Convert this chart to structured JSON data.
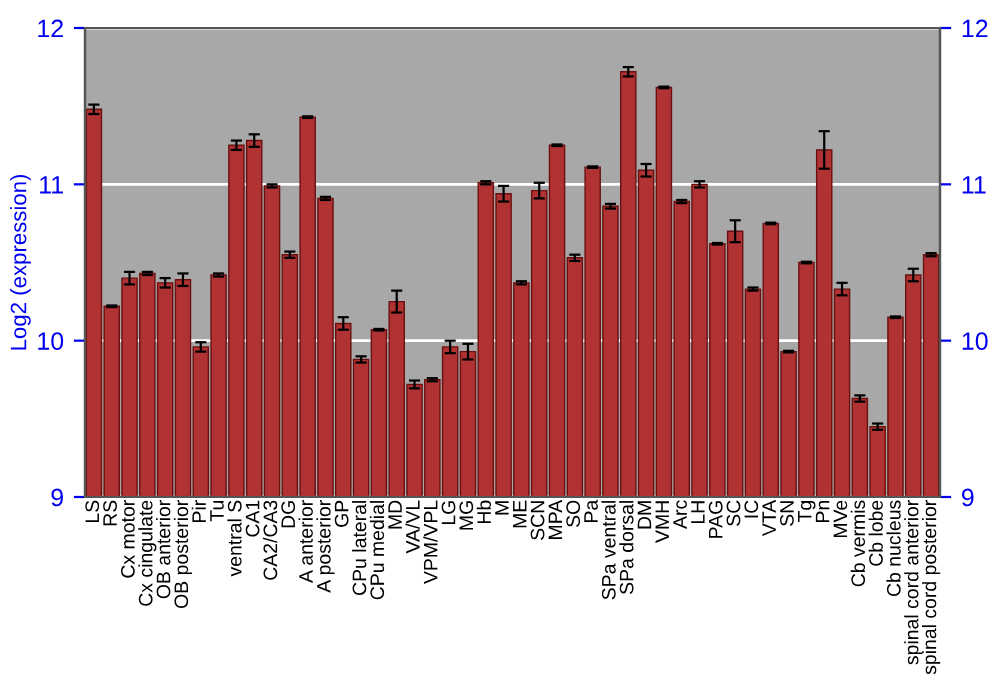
{
  "chart_data": {
    "type": "bar",
    "ylabel": "Log2 (expression)",
    "categories": [
      "LS",
      "RS",
      "Cx motor",
      "Cx cingulate",
      "OB anterior",
      "OB posterior",
      "Pir",
      "Tu",
      "ventral S",
      "CA1",
      "CA2/CA3",
      "DG",
      "A anterior",
      "A posterior",
      "GP",
      "CPu lateral",
      "CPu medial",
      "MD",
      "VA/VL",
      "VPM/VPL",
      "LG",
      "MG",
      "Hb",
      "M",
      "ME",
      "SCN",
      "MPA",
      "SO",
      "Pa",
      "SPa ventral",
      "SPa dorsal",
      "DM",
      "VMH",
      "Arc",
      "LH",
      "PAG",
      "SC",
      "IC",
      "VTA",
      "SN",
      "Tg",
      "Pn",
      "MVe",
      "Cb vermis",
      "Cb lobe",
      "Cb nucleus",
      "spinal cord anterior",
      "spinal cord posterior"
    ],
    "values": [
      11.48,
      10.22,
      10.4,
      10.43,
      10.37,
      10.39,
      9.96,
      10.42,
      11.25,
      11.28,
      10.99,
      10.55,
      11.43,
      10.91,
      10.11,
      9.88,
      10.07,
      10.25,
      9.72,
      9.75,
      9.96,
      9.93,
      11.01,
      10.94,
      10.37,
      10.96,
      11.25,
      10.53,
      11.11,
      10.86,
      11.72,
      11.09,
      11.62,
      10.89,
      11.0,
      10.62,
      10.7,
      10.33,
      10.75,
      9.93,
      10.5,
      11.22,
      10.33,
      9.63,
      9.45,
      10.15,
      10.42,
      10.55
    ],
    "errors": [
      0.03,
      0.005,
      0.04,
      0.01,
      0.03,
      0.04,
      0.03,
      0.01,
      0.03,
      0.04,
      0.01,
      0.02,
      0.005,
      0.01,
      0.04,
      0.02,
      0.005,
      0.07,
      0.025,
      0.01,
      0.04,
      0.05,
      0.01,
      0.05,
      0.01,
      0.05,
      0.005,
      0.02,
      0.005,
      0.015,
      0.03,
      0.04,
      0.005,
      0.01,
      0.02,
      0.005,
      0.07,
      0.01,
      0.005,
      0.005,
      0.005,
      0.12,
      0.04,
      0.02,
      0.02,
      0.005,
      0.04,
      0.01
    ],
    "color": "#b03232",
    "ylim": [
      9,
      12
    ],
    "yticks": [
      9,
      10,
      11,
      12
    ],
    "y2lim": [
      9,
      12
    ],
    "y2ticks": [
      9,
      10,
      11,
      12
    ],
    "grid": "y"
  }
}
